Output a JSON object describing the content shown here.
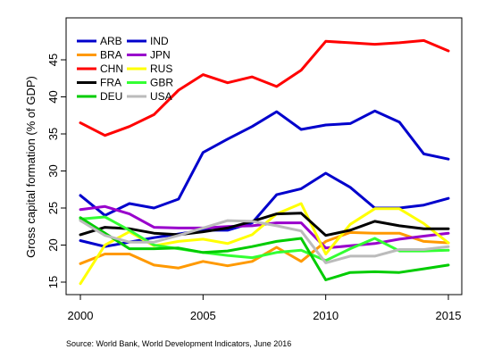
{
  "chart_data": {
    "type": "line",
    "title": "",
    "xlabel": "",
    "ylabel": "Gross capital formation (% of GDP)",
    "x": [
      2000,
      2001,
      2002,
      2003,
      2004,
      2005,
      2006,
      2007,
      2008,
      2009,
      2010,
      2011,
      2012,
      2013,
      2014,
      2015
    ],
    "xlim": [
      2000,
      2015
    ],
    "ylim": [
      15,
      48
    ],
    "x_ticks": [
      "2000",
      "2005",
      "2010",
      "2015"
    ],
    "y_ticks": [
      "15",
      "20",
      "25",
      "30",
      "35",
      "40",
      "45"
    ],
    "grid": false,
    "legend_position": "top-left",
    "series": [
      {
        "name": "ARB",
        "color": "#0000cc",
        "values": [
          20.6,
          19.8,
          20.4,
          21.0,
          21.5,
          22.0,
          22.0,
          23.0,
          26.8,
          27.6,
          29.7,
          27.8,
          25.0,
          25.0,
          25.4,
          26.3
        ]
      },
      {
        "name": "IND",
        "color": "#0000cc",
        "values": [
          26.7,
          24.0,
          25.6,
          25.0,
          26.2,
          32.5,
          34.3,
          36.0,
          38.0,
          35.6,
          36.2,
          36.4,
          38.1,
          36.6,
          32.3,
          31.6
        ]
      },
      {
        "name": "BRA",
        "color": "#ff9900",
        "values": [
          17.5,
          18.8,
          18.8,
          17.3,
          16.9,
          17.8,
          17.2,
          17.8,
          19.7,
          17.8,
          20.5,
          21.7,
          21.6,
          21.6,
          20.5,
          20.3
        ]
      },
      {
        "name": "JPN",
        "color": "#9900cc",
        "values": [
          24.8,
          25.2,
          24.2,
          22.4,
          22.3,
          22.3,
          22.5,
          22.6,
          23.0,
          23.0,
          19.6,
          19.9,
          20.2,
          20.8,
          21.2,
          21.6
        ]
      },
      {
        "name": "CHN",
        "color": "#ff0000",
        "values": [
          36.5,
          34.8,
          36.0,
          37.6,
          40.9,
          43.0,
          41.9,
          42.7,
          41.4,
          43.6,
          47.5,
          47.3,
          47.1,
          47.3,
          47.6,
          46.2
        ]
      },
      {
        "name": "RUS",
        "color": "#ffff00",
        "values": [
          14.8,
          20.0,
          21.8,
          19.9,
          20.5,
          20.8,
          20.2,
          21.4,
          24.2,
          25.6,
          18.8,
          22.8,
          24.9,
          24.9,
          22.9,
          20.3
        ]
      },
      {
        "name": "FRA",
        "color": "#000000",
        "values": [
          21.4,
          22.4,
          22.2,
          21.6,
          21.4,
          21.8,
          22.3,
          23.2,
          24.2,
          24.3,
          21.3,
          22.0,
          23.2,
          22.6,
          22.2,
          22.2
        ]
      },
      {
        "name": "GBR",
        "color": "#33ff33",
        "values": [
          23.5,
          23.8,
          22.0,
          20.0,
          19.5,
          19.0,
          18.6,
          18.3,
          19.0,
          19.3,
          17.9,
          19.5,
          20.9,
          19.2,
          19.2,
          19.3
        ]
      },
      {
        "name": "DEU",
        "color": "#00cc00",
        "values": [
          23.7,
          21.6,
          19.5,
          19.5,
          19.6,
          19.0,
          19.2,
          19.8,
          20.5,
          20.9,
          15.3,
          16.3,
          16.4,
          16.3,
          16.8,
          17.3
        ]
      },
      {
        "name": "USA",
        "color": "#bbbbbb",
        "values": [
          23.3,
          21.3,
          20.4,
          20.4,
          21.3,
          22.3,
          23.3,
          23.2,
          22.6,
          21.9,
          17.6,
          18.5,
          18.5,
          19.4,
          19.4,
          19.8
        ]
      }
    ],
    "annotations": [
      "Source: World Bank, World Development Indicators, June 2016"
    ]
  }
}
